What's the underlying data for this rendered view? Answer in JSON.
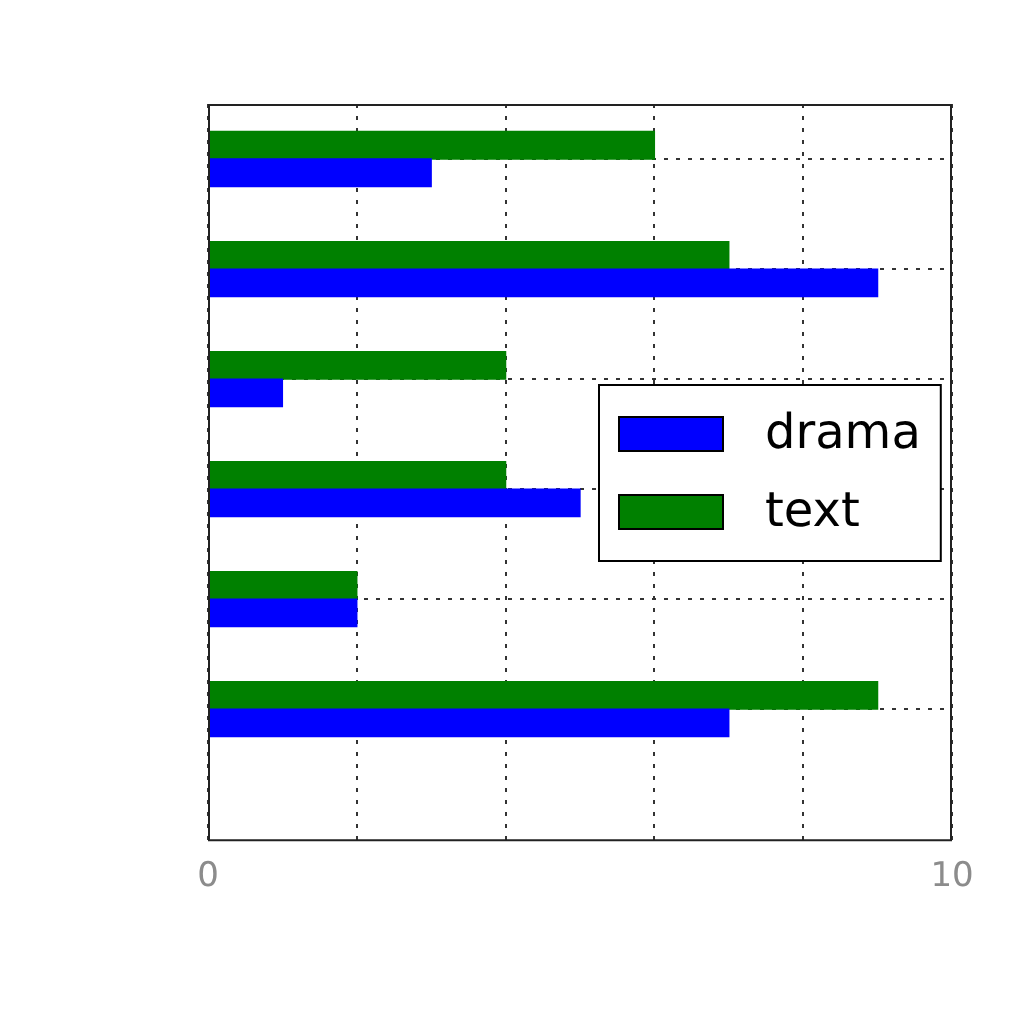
{
  "chart_data": {
    "type": "bar",
    "orientation": "horizontal",
    "categories": [
      null,
      null,
      null,
      null,
      null,
      null
    ],
    "series": [
      {
        "name": "drama",
        "color": "#0000ff",
        "values": [
          3,
          9,
          1,
          5,
          2,
          7
        ]
      },
      {
        "name": "text",
        "color": "#008000",
        "values": [
          6,
          7,
          4,
          4,
          2,
          9
        ]
      }
    ],
    "xlim": [
      0,
      10
    ],
    "xticks": [
      0,
      {
        "value": 2,
        "label": null
      },
      {
        "value": 4,
        "label": null
      },
      {
        "value": 6,
        "label": null
      },
      {
        "value": 8,
        "label": null
      },
      10
    ],
    "grid": true,
    "legend": "right"
  }
}
